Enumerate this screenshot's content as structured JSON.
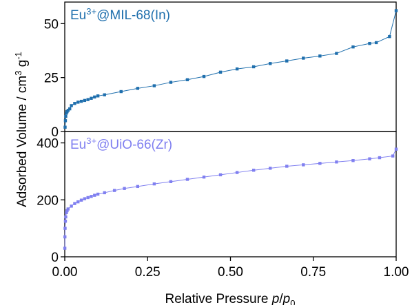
{
  "chart_data": [
    {
      "type": "line",
      "panel": "top",
      "label_base": "Eu",
      "label_sup": "3+",
      "label_rest": "@MIL-68(In)",
      "color": "#1f6fad",
      "ylim": [
        0,
        60
      ],
      "yticks": [
        0,
        25,
        50
      ],
      "ytick_labels": [
        "0",
        "25",
        "50"
      ],
      "series": [
        {
          "x": [
            0.001,
            0.002,
            0.003,
            0.005,
            0.007,
            0.01,
            0.015,
            0.02,
            0.03,
            0.04,
            0.05,
            0.06,
            0.07,
            0.08,
            0.09,
            0.1,
            0.12,
            0.17,
            0.22,
            0.27,
            0.32,
            0.37,
            0.42,
            0.47,
            0.52,
            0.57,
            0.62,
            0.67,
            0.72,
            0.77,
            0.82,
            0.87,
            0.92,
            0.94,
            0.98,
            1.0
          ],
          "y": [
            2,
            5,
            7,
            8.5,
            9.2,
            9.8,
            10.5,
            12,
            13,
            13.6,
            14,
            14.4,
            14.8,
            15.4,
            16,
            16.5,
            17,
            18.5,
            20,
            21.2,
            22.8,
            24,
            25.5,
            27.5,
            29,
            30,
            31.5,
            32.7,
            34,
            35,
            36.2,
            39.2,
            40.8,
            41.2,
            44,
            56
          ]
        }
      ]
    },
    {
      "type": "line",
      "panel": "bottom",
      "label_base": "Eu",
      "label_sup": "3+",
      "label_rest": "@UiO-66(Zr)",
      "color": "#8080f0",
      "ylim": [
        0,
        440
      ],
      "yticks": [
        0,
        200,
        400
      ],
      "ytick_labels": [
        "0",
        "200",
        "400"
      ],
      "series": [
        {
          "x": [
            0.0003,
            0.0005,
            0.001,
            0.002,
            0.003,
            0.005,
            0.007,
            0.01,
            0.02,
            0.03,
            0.04,
            0.05,
            0.06,
            0.07,
            0.08,
            0.09,
            0.1,
            0.12,
            0.15,
            0.18,
            0.22,
            0.27,
            0.32,
            0.37,
            0.42,
            0.47,
            0.52,
            0.57,
            0.62,
            0.67,
            0.72,
            0.77,
            0.82,
            0.87,
            0.92,
            0.95,
            0.99,
            1.0
          ],
          "y": [
            30,
            70,
            100,
            125,
            140,
            155,
            162,
            168,
            178,
            187,
            193,
            199,
            204,
            208,
            212,
            216,
            220,
            225,
            233,
            240,
            247,
            256,
            264,
            272,
            280,
            288,
            296,
            304,
            311,
            318,
            323,
            328,
            333,
            338,
            344,
            348,
            354,
            378
          ]
        }
      ]
    }
  ],
  "axes": {
    "xlabel_main": "Relative Pressure ",
    "xlabel_p": "p",
    "xlabel_slash": "/",
    "xlabel_p0": "p",
    "xlabel_sub": "0",
    "ylabel_a": "Adsorbed Volume / cm",
    "ylabel_sup1": "3",
    "ylabel_b": " g",
    "ylabel_sup2": "-1",
    "xlim": [
      0,
      1
    ],
    "xticks": [
      0,
      0.25,
      0.5,
      0.75,
      1.0
    ],
    "xtick_labels": [
      "0.00",
      "0.25",
      "0.50",
      "0.75",
      "1.00"
    ]
  }
}
